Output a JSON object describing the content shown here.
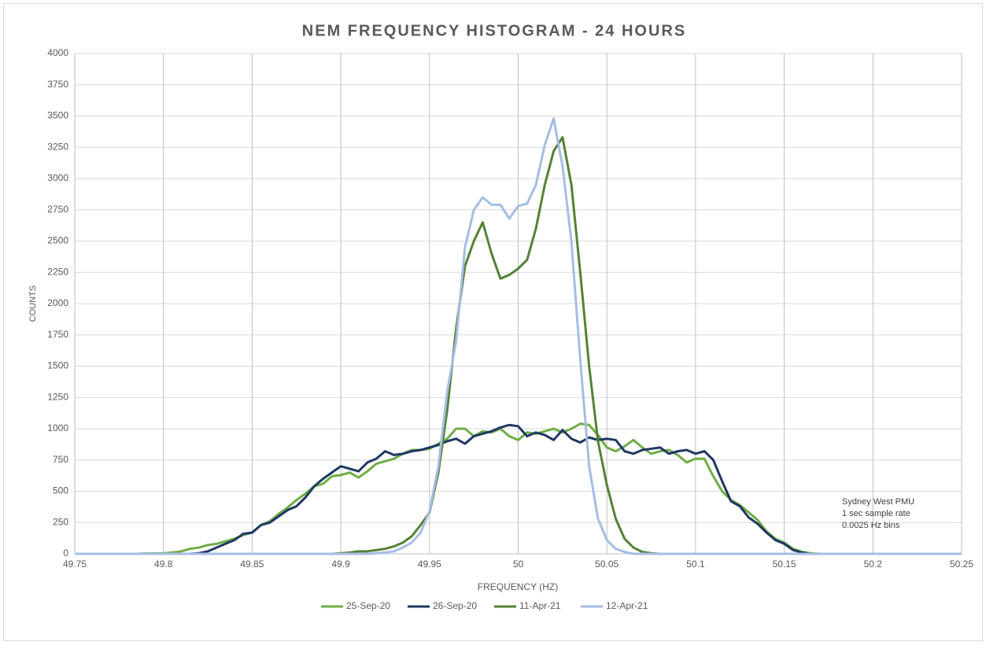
{
  "chart_data": {
    "type": "line",
    "title": "NEM FREQUENCY HISTOGRAM - 24 HOURS",
    "x_label": "FREQUENCY (HZ)",
    "y_label": "COUNTS",
    "annotations": [
      "Sydney West PMU",
      "1 sec sample rate",
      "0.0025 Hz bins"
    ],
    "x": [
      49.75,
      49.755,
      49.76,
      49.765,
      49.77,
      49.775,
      49.78,
      49.785,
      49.79,
      49.795,
      49.8,
      49.805,
      49.81,
      49.815,
      49.82,
      49.825,
      49.83,
      49.835,
      49.84,
      49.845,
      49.85,
      49.855,
      49.86,
      49.865,
      49.87,
      49.875,
      49.88,
      49.885,
      49.89,
      49.895,
      49.9,
      49.905,
      49.91,
      49.915,
      49.92,
      49.925,
      49.93,
      49.935,
      49.94,
      49.945,
      49.95,
      49.955,
      49.96,
      49.965,
      49.97,
      49.975,
      49.98,
      49.985,
      49.99,
      49.995,
      50,
      50.005,
      50.01,
      50.015,
      50.02,
      50.025,
      50.03,
      50.035,
      50.04,
      50.045,
      50.05,
      50.055,
      50.06,
      50.065,
      50.07,
      50.075,
      50.08,
      50.085,
      50.09,
      50.095,
      50.1,
      50.105,
      50.11,
      50.115,
      50.12,
      50.125,
      50.13,
      50.135,
      50.14,
      50.145,
      50.15,
      50.155,
      50.16,
      50.165,
      50.17,
      50.175,
      50.18,
      50.185,
      50.19,
      50.195,
      50.2,
      50.205,
      50.21,
      50.215,
      50.22,
      50.225,
      50.23,
      50.235,
      50.24,
      50.245,
      50.25
    ],
    "series": [
      {
        "name": "25-Sep-20",
        "color": "#70ad47",
        "values": [
          0,
          0,
          0,
          0,
          0,
          0,
          0,
          0,
          3,
          3,
          5,
          10,
          20,
          40,
          50,
          70,
          80,
          100,
          120,
          150,
          170,
          230,
          260,
          320,
          370,
          430,
          480,
          540,
          560,
          620,
          630,
          650,
          610,
          660,
          720,
          740,
          760,
          800,
          830,
          830,
          840,
          880,
          920,
          1000,
          1000,
          940,
          980,
          970,
          1000,
          940,
          910,
          970,
          960,
          980,
          1000,
          970,
          1000,
          1040,
          1030,
          950,
          850,
          820,
          860,
          910,
          850,
          800,
          820,
          830,
          790,
          730,
          760,
          760,
          620,
          500,
          430,
          390,
          330,
          270,
          180,
          120,
          90,
          40,
          15,
          5,
          0,
          0,
          0,
          0,
          0,
          0,
          0,
          0,
          0,
          0,
          0,
          0,
          0,
          0,
          0,
          0,
          0
        ]
      },
      {
        "name": "26-Sep-20",
        "color": "#203864",
        "values": [
          0,
          0,
          0,
          0,
          0,
          0,
          0,
          0,
          0,
          0,
          0,
          0,
          0,
          0,
          5,
          20,
          50,
          80,
          110,
          160,
          170,
          230,
          250,
          300,
          350,
          380,
          450,
          540,
          600,
          650,
          700,
          680,
          660,
          730,
          760,
          820,
          790,
          800,
          820,
          830,
          850,
          870,
          900,
          920,
          880,
          940,
          960,
          980,
          1010,
          1030,
          1020,
          940,
          970,
          950,
          910,
          990,
          920,
          890,
          930,
          910,
          920,
          910,
          820,
          800,
          830,
          840,
          850,
          800,
          820,
          830,
          800,
          820,
          750,
          580,
          420,
          380,
          290,
          240,
          170,
          110,
          80,
          30,
          10,
          0,
          0,
          0,
          0,
          0,
          0,
          0,
          0,
          0,
          0,
          0,
          0,
          0,
          0,
          0,
          0,
          0,
          0
        ]
      },
      {
        "name": "11-Apr-21",
        "color": "#548235",
        "values": [
          0,
          0,
          0,
          0,
          0,
          0,
          0,
          0,
          0,
          0,
          0,
          0,
          0,
          0,
          0,
          0,
          0,
          0,
          0,
          0,
          0,
          0,
          0,
          0,
          0,
          0,
          0,
          0,
          0,
          0,
          5,
          10,
          20,
          20,
          30,
          40,
          60,
          90,
          140,
          230,
          330,
          650,
          1150,
          1800,
          2300,
          2500,
          2650,
          2400,
          2200,
          2230,
          2280,
          2350,
          2600,
          2950,
          3220,
          3330,
          2950,
          2250,
          1500,
          900,
          550,
          280,
          120,
          50,
          15,
          5,
          0,
          0,
          0,
          0,
          0,
          0,
          0,
          0,
          0,
          0,
          0,
          0,
          0,
          0,
          0,
          0,
          0,
          0,
          0,
          0,
          0,
          0,
          0,
          0,
          0,
          0,
          0,
          0,
          0,
          0,
          0,
          0,
          0,
          0,
          0
        ]
      },
      {
        "name": "12-Apr-21",
        "color": "#a5bde5",
        "values": [
          0,
          0,
          0,
          0,
          0,
          0,
          0,
          0,
          0,
          0,
          0,
          0,
          0,
          0,
          0,
          0,
          0,
          0,
          0,
          0,
          0,
          0,
          0,
          0,
          0,
          0,
          0,
          0,
          0,
          0,
          0,
          0,
          0,
          0,
          5,
          10,
          20,
          50,
          90,
          170,
          340,
          700,
          1300,
          1700,
          2450,
          2750,
          2850,
          2790,
          2790,
          2680,
          2780,
          2800,
          2950,
          3270,
          3480,
          3100,
          2500,
          1550,
          700,
          280,
          110,
          40,
          15,
          0,
          0,
          0,
          0,
          0,
          0,
          0,
          0,
          0,
          0,
          0,
          0,
          0,
          0,
          0,
          0,
          0,
          0,
          0,
          0,
          0,
          0,
          0,
          0,
          0,
          0,
          0,
          0,
          0,
          0,
          0,
          0,
          0,
          0,
          0,
          0,
          0,
          0
        ]
      }
    ],
    "xlim": [
      49.75,
      50.25
    ],
    "xticks": [
      49.75,
      49.8,
      49.85,
      49.9,
      49.95,
      50,
      50.05,
      50.1,
      50.15,
      50.2,
      50.25
    ],
    "ylim": [
      0,
      4000
    ],
    "yticks": [
      0,
      250,
      500,
      750,
      1000,
      1250,
      1500,
      1750,
      2000,
      2250,
      2500,
      2750,
      3000,
      3250,
      3500,
      3750,
      4000
    ],
    "grid": true,
    "legend": "bottom"
  }
}
